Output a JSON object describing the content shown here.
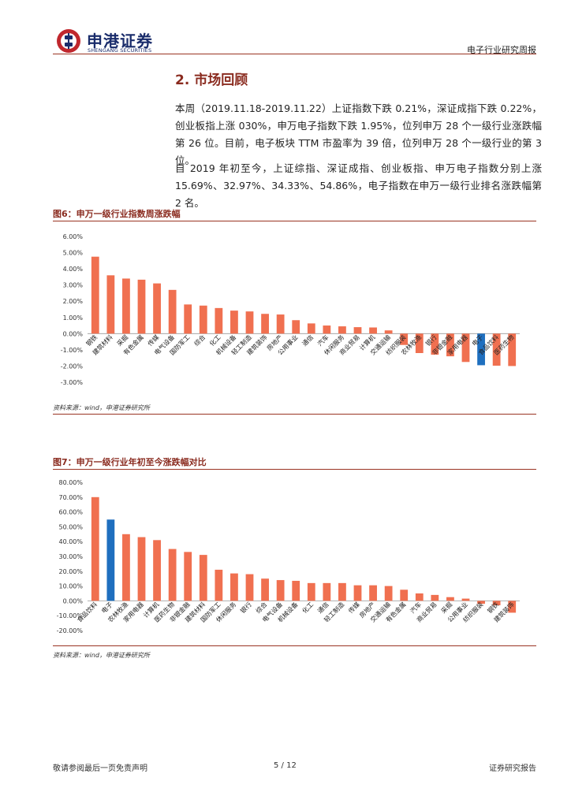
{
  "header": {
    "company_name": "申港证券",
    "company_sub": "SHENGANG SECURITIES",
    "report_type": "电子行业研究周报"
  },
  "section": {
    "title": "2. 市场回顾",
    "paragraph1": "本周（2019.11.18-2019.11.22）上证指数下跌 0.21%，深证成指下跌 0.22%，创业板指上涨 030%，申万电子指数下跌 1.95%，位列申万 28 个一级行业涨跌幅第 26 位。目前，电子板块 TTM 市盈率为 39 倍，位列申万 28 个一级行业的第 3 位。",
    "paragraph2": "自 2019 年初至今，上证综指、深证成指、创业板指、申万电子指数分别上涨 15.69%、32.97%、34.33%、54.86%，电子指数在申万一级行业排名涨跌幅第 2 名。"
  },
  "figures": {
    "fig6_title": "图6：申万一级行业指数周涨跌幅",
    "fig6_source": "资料来源：wind，申港证券研究所",
    "fig7_title": "图7：申万一级行业年初至今涨跌幅对比",
    "fig7_source": "资料来源：wind，申港证券研究所"
  },
  "colors": {
    "bar": "#f07050",
    "highlight": "#1f6fbf",
    "accent": "#8a2b1f"
  },
  "chart_data": [
    {
      "type": "bar",
      "title": "申万一级行业指数周涨跌幅",
      "categories": [
        "钢铁",
        "建筑材料",
        "采掘",
        "有色金属",
        "传媒",
        "电气设备",
        "国防军工",
        "综合",
        "化工",
        "机械设备",
        "轻工制造",
        "建筑装饰",
        "房地产",
        "公用事业",
        "通信",
        "汽车",
        "休闲服务",
        "商业贸易",
        "计算机",
        "交通运输",
        "纺织服装",
        "农林牧渔",
        "银行",
        "非银金融",
        "家用电器",
        "电子",
        "食品饮料",
        "医药生物"
      ],
      "values": [
        4.75,
        3.6,
        3.4,
        3.33,
        3.1,
        2.7,
        1.8,
        1.73,
        1.58,
        1.42,
        1.37,
        1.22,
        1.18,
        0.83,
        0.63,
        0.5,
        0.45,
        0.4,
        0.38,
        0.2,
        -0.7,
        -1.2,
        -1.3,
        -1.4,
        -1.75,
        -1.95,
        -1.98,
        -2.0
      ],
      "highlight": "电子",
      "yticks": [
        "6.00%",
        "5.00%",
        "4.00%",
        "3.00%",
        "2.00%",
        "1.00%",
        "0.00%",
        "-1.00%",
        "-2.00%",
        "-3.00%"
      ],
      "ylim": [
        -3,
        6
      ]
    },
    {
      "type": "bar",
      "title": "申万一级行业年初至今涨跌幅对比",
      "categories": [
        "食品饮料",
        "电子",
        "农林牧渔",
        "家用电器",
        "计算机",
        "医药生物",
        "非银金融",
        "建筑材料",
        "国防军工",
        "休闲服务",
        "银行",
        "综合",
        "电气设备",
        "机械设备",
        "化工",
        "通信",
        "轻工制造",
        "传媒",
        "房地产",
        "交通运输",
        "有色金属",
        "汽车",
        "商业贸易",
        "采掘",
        "公用事业",
        "纺织服装",
        "钢铁",
        "建筑装饰"
      ],
      "values": [
        70.0,
        54.86,
        45.0,
        43.0,
        41.0,
        35.0,
        33.0,
        31.0,
        21.0,
        18.5,
        18.0,
        15.0,
        14.0,
        13.5,
        12.0,
        12.0,
        12.0,
        10.5,
        10.5,
        10.0,
        7.5,
        5.0,
        4.0,
        2.5,
        1.5,
        -2.0,
        -3.0,
        -8.0
      ],
      "highlight": "电子",
      "yticks": [
        "80.00%",
        "70.00%",
        "60.00%",
        "50.00%",
        "40.00%",
        "30.00%",
        "20.00%",
        "10.00%",
        "0.00%",
        "-10.00%",
        "-20.00%"
      ],
      "ylim": [
        -20,
        80
      ]
    }
  ],
  "footer": {
    "disclaimer": "敬请参阅最后一页免责声明",
    "page": "5 / 12",
    "label": "证券研究报告"
  }
}
